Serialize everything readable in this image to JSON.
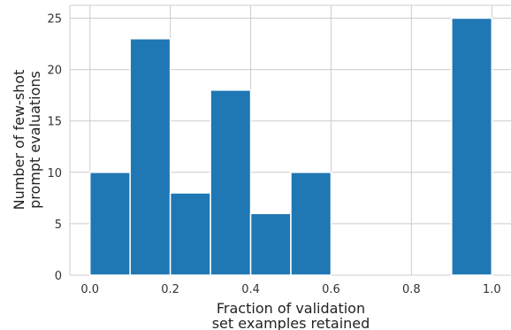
{
  "chart_data": {
    "type": "bar",
    "subtype": "histogram",
    "title": "",
    "xlabel_lines": [
      "Fraction of validation",
      "set examples retained"
    ],
    "ylabel_lines": [
      "Number of few-shot",
      "prompt evaluations"
    ],
    "xlim": [
      -0.05,
      1.05
    ],
    "ylim": [
      0,
      26.25
    ],
    "xticks": [
      0.0,
      0.2,
      0.4,
      0.6,
      0.8,
      1.0
    ],
    "xtick_labels": [
      "0.0",
      "0.2",
      "0.4",
      "0.6",
      "0.8",
      "1.0"
    ],
    "yticks": [
      0,
      5,
      10,
      15,
      20,
      25
    ],
    "ytick_labels": [
      "0",
      "5",
      "10",
      "15",
      "20",
      "25"
    ],
    "grid": true,
    "legend": "none",
    "color": "#1f77b4",
    "bins": [
      {
        "start": 0.0,
        "end": 0.1,
        "count": 10
      },
      {
        "start": 0.1,
        "end": 0.2,
        "count": 23
      },
      {
        "start": 0.2,
        "end": 0.3,
        "count": 8
      },
      {
        "start": 0.3,
        "end": 0.4,
        "count": 18
      },
      {
        "start": 0.4,
        "end": 0.5,
        "count": 6
      },
      {
        "start": 0.5,
        "end": 0.6,
        "count": 10
      },
      {
        "start": 0.6,
        "end": 0.7,
        "count": 0
      },
      {
        "start": 0.7,
        "end": 0.8,
        "count": 0
      },
      {
        "start": 0.8,
        "end": 0.9,
        "count": 0
      },
      {
        "start": 0.9,
        "end": 1.0,
        "count": 25
      }
    ]
  }
}
